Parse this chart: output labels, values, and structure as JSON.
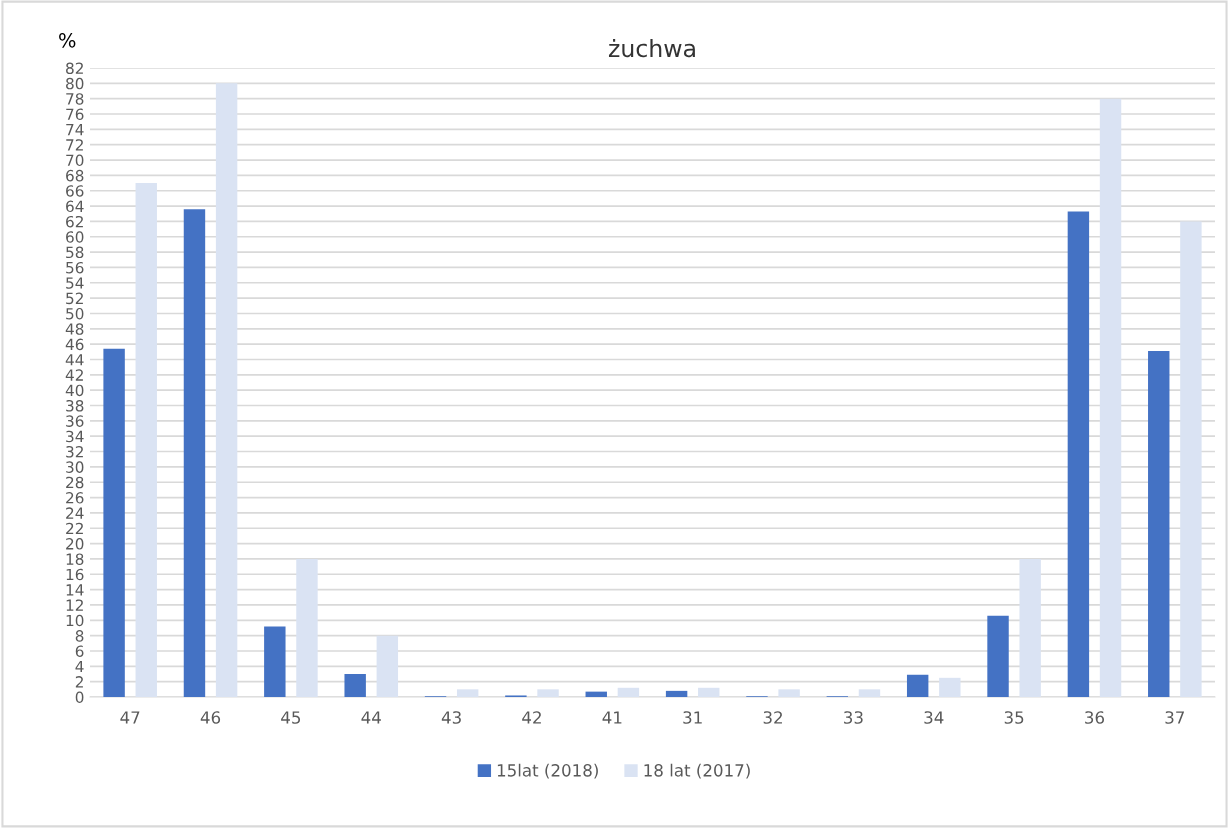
{
  "chart_data": {
    "type": "bar",
    "title": "żuchwa",
    "ylabel": "%",
    "categories": [
      "47",
      "46",
      "45",
      "44",
      "43",
      "42",
      "41",
      "31",
      "32",
      "33",
      "34",
      "35",
      "36",
      "37"
    ],
    "series": [
      {
        "name": "15lat (2018)",
        "color": "#4472c4",
        "values": [
          45.4,
          63.6,
          9.2,
          3.0,
          0.1,
          0.2,
          0.7,
          0.8,
          0.1,
          0.1,
          2.9,
          10.6,
          63.3,
          45.1
        ]
      },
      {
        "name": "18 lat (2017)",
        "color": "#dae3f3",
        "values": [
          67,
          80,
          18,
          8,
          1,
          1,
          1.2,
          1.2,
          1,
          1,
          2.5,
          18,
          78,
          62
        ]
      }
    ],
    "ylim": [
      0,
      82
    ],
    "yticks": [
      0,
      2,
      4,
      6,
      8,
      10,
      12,
      14,
      16,
      18,
      20,
      22,
      24,
      26,
      28,
      30,
      32,
      34,
      36,
      38,
      40,
      42,
      44,
      46,
      48,
      50,
      52,
      54,
      56,
      58,
      60,
      62,
      64,
      66,
      68,
      70,
      72,
      74,
      76,
      78,
      80,
      82
    ],
    "grid": "y",
    "legend": "bottom"
  }
}
